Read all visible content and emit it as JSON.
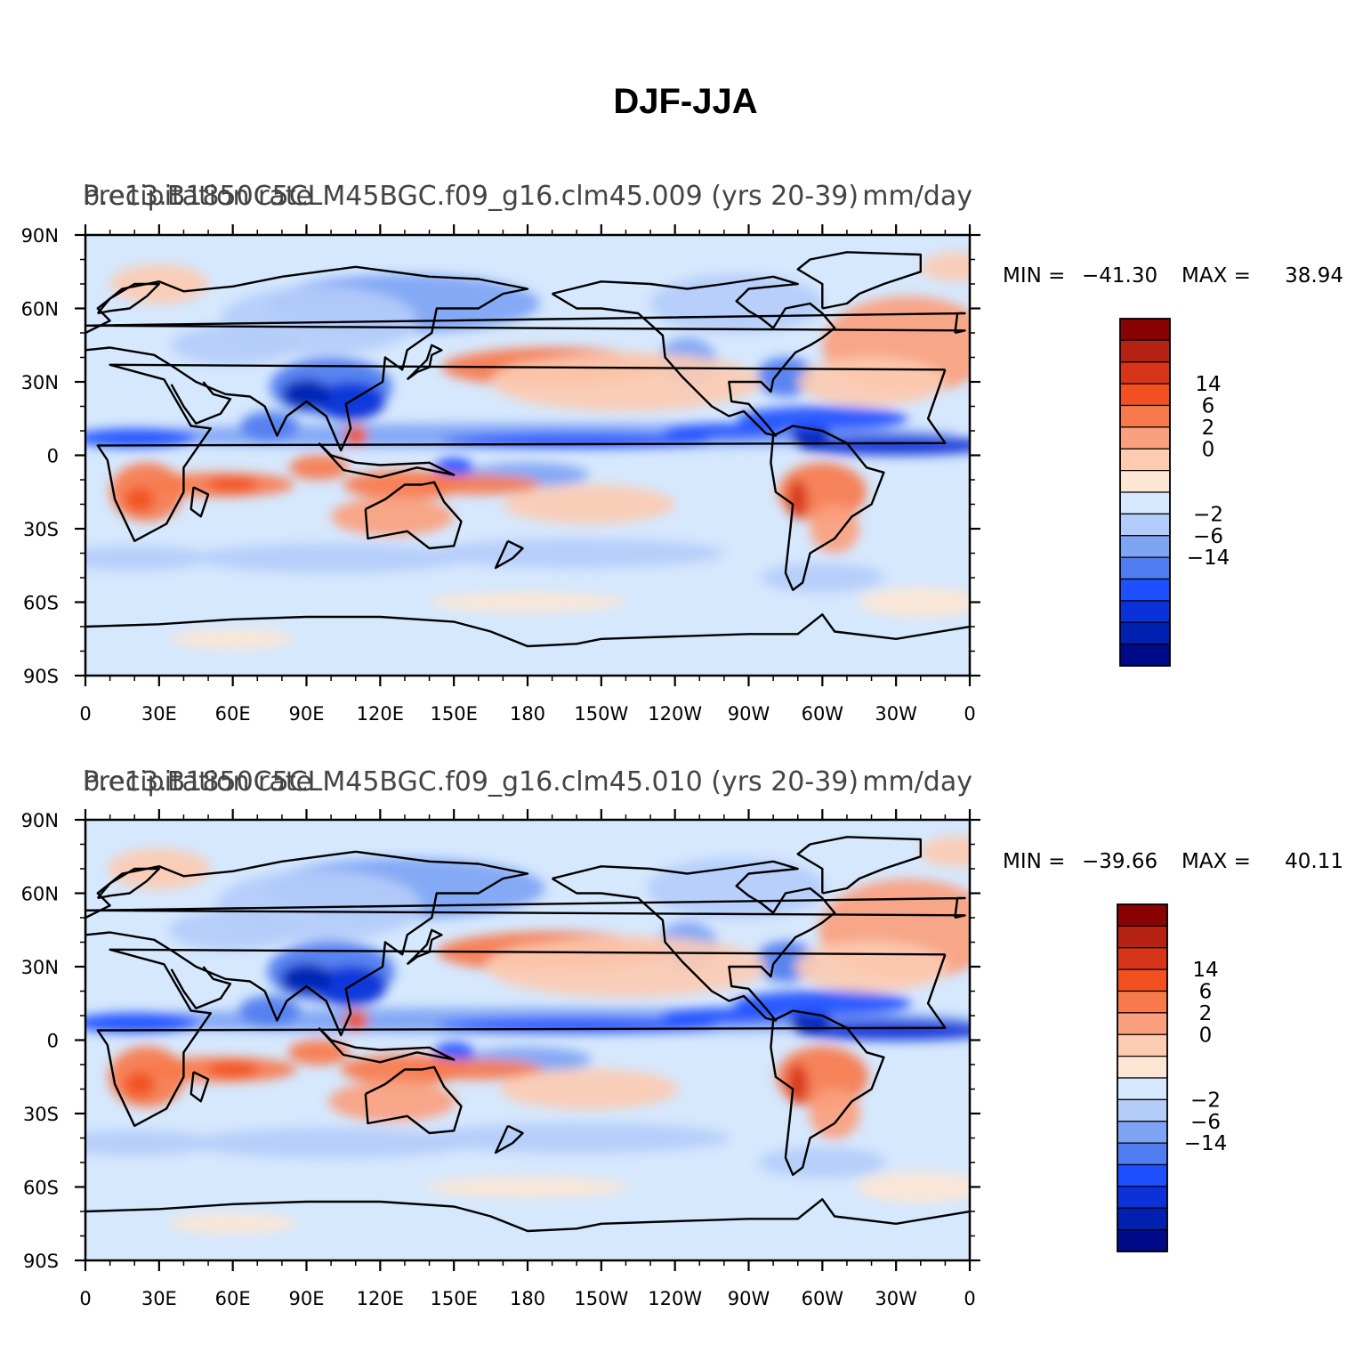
{
  "main_title": "DJF-JJA",
  "palette": {
    "levels": [
      "#000b8a",
      "#0020b0",
      "#0a32d8",
      "#1e50ff",
      "#4f7cf0",
      "#7ea4f4",
      "#b4ccfa",
      "#d6e8fd",
      "#fde6d4",
      "#fccbb2",
      "#fba07e",
      "#f87a4c",
      "#f25020",
      "#d6351a",
      "#b52212",
      "#8a0303"
    ],
    "ocean": "#d6e8fd",
    "coast": "#000000"
  },
  "colorbar": {
    "labels": [
      {
        "value": "14",
        "edge": 13
      },
      {
        "value": "6",
        "edge": 12
      },
      {
        "value": "2",
        "edge": 11
      },
      {
        "value": "0",
        "edge": 10
      },
      {
        "value": "−2",
        "edge": 7
      },
      {
        "value": "−6",
        "edge": 6
      },
      {
        "value": "−14",
        "edge": 5
      }
    ]
  },
  "axes": {
    "x_ticks": [
      "0",
      "30E",
      "60E",
      "90E",
      "120E",
      "150E",
      "180",
      "150W",
      "120W",
      "90W",
      "60W",
      "30W",
      "0"
    ],
    "y_ticks": [
      "90N",
      "60N",
      "30N",
      "0",
      "30S",
      "60S",
      "90S"
    ]
  },
  "panels": [
    {
      "title_left": "Precipitation rate",
      "title_center": "b.e13.B1850C5CLM45BGC.f09_g16.clm45.009  (yrs  20-39)",
      "title_right": "mm/day",
      "min_label": "MIN = ",
      "min_value": "−41.30",
      "max_label": "MAX = ",
      "max_value": "38.94"
    },
    {
      "title_left": "Precipitation rate",
      "title_center": "b.e13.B1850C5CLM45BGC.f09_g16.clm45.010  (yrs  20-39)",
      "title_right": "mm/day",
      "min_label": "MIN = ",
      "min_value": "−39.66",
      "max_label": "MAX = ",
      "max_value": "40.11"
    }
  ]
}
